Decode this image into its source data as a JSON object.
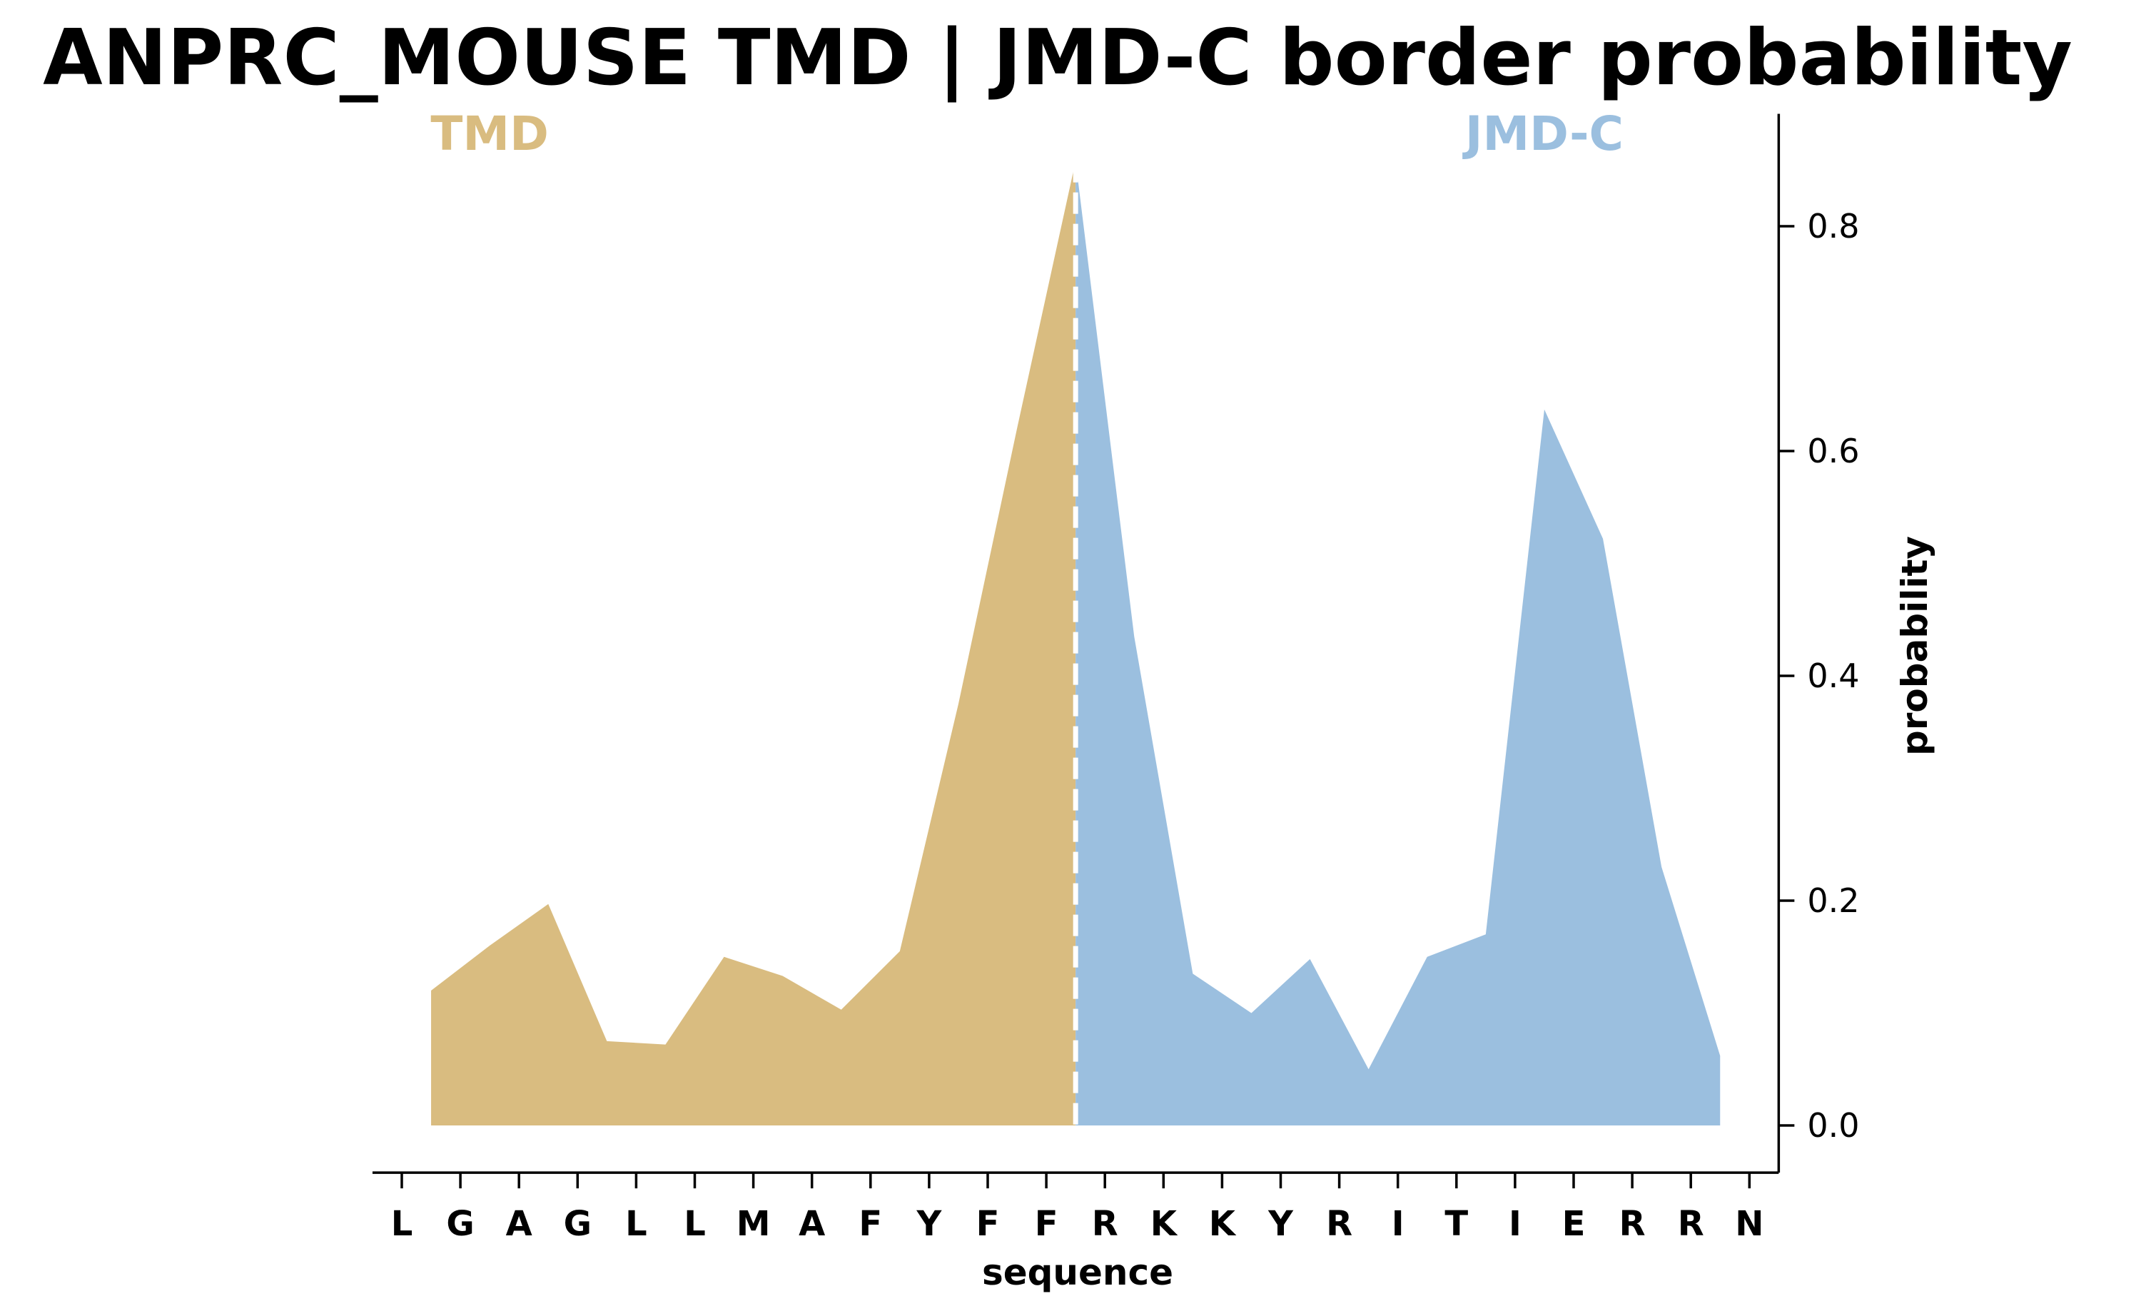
{
  "chart_data": {
    "type": "area",
    "title": "ANPRC_MOUSE TMD | JMD-C border probability",
    "xlabel": "sequence",
    "ylabel": "probability",
    "ylim": [
      -0.042,
      0.9
    ],
    "yticks": [
      "0.0",
      "0.2",
      "0.4",
      "0.6",
      "0.8"
    ],
    "ytick_values": [
      0.0,
      0.2,
      0.4,
      0.6,
      0.8
    ],
    "y_axis_position": "right",
    "grid": false,
    "categories": [
      "L",
      "G",
      "A",
      "G",
      "L",
      "L",
      "M",
      "A",
      "F",
      "Y",
      "F",
      "F",
      "R",
      "K",
      "K",
      "Y",
      "R",
      "I",
      "T",
      "I",
      "E",
      "R",
      "R",
      "N"
    ],
    "region_labels": [
      {
        "name": "TMD",
        "color": "#d9bc80"
      },
      {
        "name": "JMD-C",
        "color": "#9bbfdf"
      }
    ],
    "border_position": 11.5,
    "series": [
      {
        "region": "TMD",
        "color": "#d9bc80",
        "x": [
          0.5,
          1.5,
          2.5,
          3.5,
          4.5,
          5.5,
          6.5,
          7.5,
          8.5,
          9.5,
          10.5,
          11.5
        ],
        "values": [
          0.12,
          0.16,
          0.197,
          0.075,
          0.072,
          0.15,
          0.133,
          0.103,
          0.155,
          0.375,
          0.62,
          0.858
        ]
      },
      {
        "region": "JMD-C",
        "color": "#9bbfdf",
        "x": [
          11.5,
          12.5,
          13.5,
          14.5,
          15.5,
          16.5,
          17.5,
          18.5,
          19.5,
          20.5,
          21.5,
          22.5
        ],
        "values": [
          0.858,
          0.435,
          0.135,
          0.1,
          0.148,
          0.05,
          0.15,
          0.17,
          0.637,
          0.522,
          0.23,
          0.062
        ]
      }
    ]
  }
}
